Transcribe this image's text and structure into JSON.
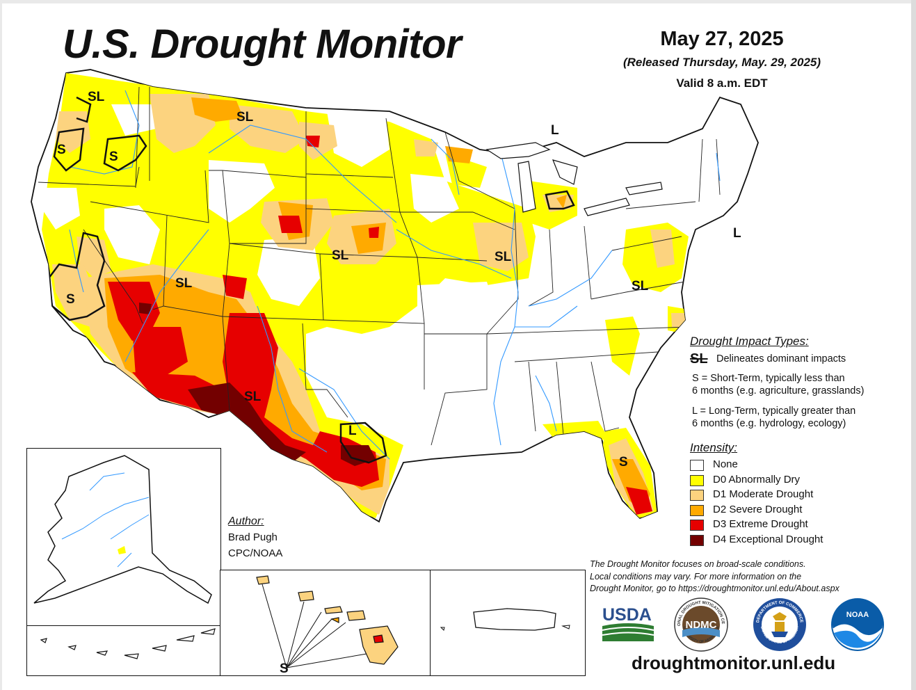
{
  "header": {
    "title": "U.S. Drought Monitor",
    "date": "May 27, 2025",
    "released": "(Released Thursday, May. 29, 2025)",
    "valid": "Valid 8 a.m. EDT"
  },
  "impact_labels": {
    "nw_washington": "SL",
    "n_rockies": "SL",
    "w_oregon": "S",
    "e_oregon": "S",
    "great_basin": "SL",
    "california": "S",
    "nebraska": "SL",
    "illinois": "SL",
    "new_mexico": "SL",
    "c_texas": "L",
    "michigan": "L",
    "northeast": "L",
    "mid_atlantic": "SL",
    "florida": "S",
    "hawaii": "S"
  },
  "legend": {
    "impact_heading": "Drought Impact Types:",
    "impact_symbol": "SL",
    "impact_delineates": "Delineates dominant impacts",
    "short_line1": "S = Short-Term, typically less than",
    "short_line2": "6 months (e.g. agriculture, grasslands)",
    "long_line1": "L = Long-Term, typically greater than",
    "long_line2": "6 months (e.g. hydrology, ecology)",
    "intensity_heading": "Intensity:",
    "intensity": [
      {
        "label": "None",
        "color": "#ffffff"
      },
      {
        "label": "D0 Abnormally Dry",
        "color": "#ffff00"
      },
      {
        "label": "D1 Moderate Drought",
        "color": "#fcd37f"
      },
      {
        "label": "D2 Severe Drought",
        "color": "#ffaa00"
      },
      {
        "label": "D3 Extreme Drought",
        "color": "#e60000"
      },
      {
        "label": "D4 Exceptional Drought",
        "color": "#730000"
      }
    ]
  },
  "author": {
    "heading": "Author:",
    "name": "Brad Pugh",
    "org": "CPC/NOAA"
  },
  "disclaimer": {
    "line1": "The Drought Monitor focuses on broad-scale conditions.",
    "line2": "Local conditions may vary. For more information on the",
    "line3": "Drought Monitor, go to https://droughtmonitor.unl.edu/About.aspx"
  },
  "logos": {
    "usda": "USDA",
    "ndmc": "NDMC",
    "ndmc_ring": "NATIONAL DROUGHT MITIGATION CENTER",
    "ndmc_sub": "UNIVERSITY OF NEBRASKA",
    "commerce_ring": "DEPARTMENT OF COMMERCE",
    "commerce_sub": "UNITED STATES OF AMERICA",
    "noaa": "NOAA"
  },
  "website": "droughtmonitor.unl.edu",
  "colors": {
    "water": "#3399ff",
    "d0": "#ffff00",
    "d1": "#fcd37f",
    "d2": "#ffaa00",
    "d3": "#e60000",
    "d4": "#730000"
  }
}
